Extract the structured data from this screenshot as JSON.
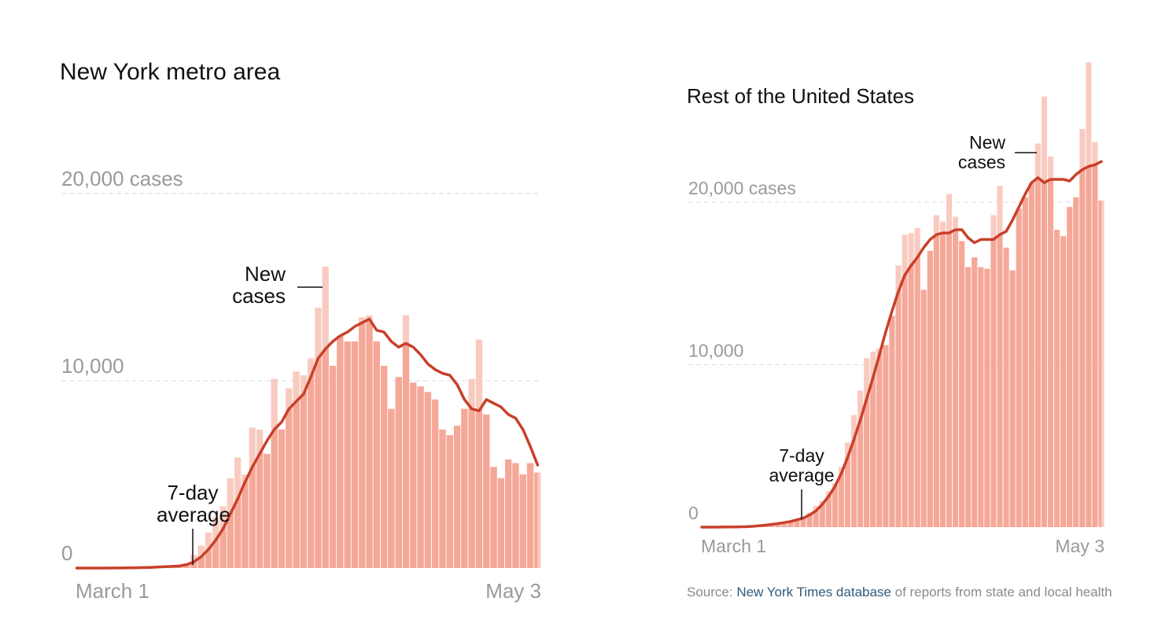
{
  "chart_data": [
    {
      "type": "bar",
      "title": "New York metro area",
      "categories": [
        "March 1",
        null,
        null,
        null,
        null,
        null,
        null,
        null,
        null,
        null,
        null,
        null,
        null,
        null,
        null,
        null,
        null,
        null,
        null,
        null,
        null,
        null,
        null,
        null,
        null,
        null,
        null,
        null,
        null,
        null,
        null,
        null,
        null,
        null,
        null,
        null,
        null,
        null,
        null,
        null,
        null,
        null,
        null,
        null,
        null,
        null,
        null,
        null,
        null,
        null,
        null,
        null,
        null,
        null,
        null,
        null,
        null,
        null,
        null,
        null,
        null,
        null,
        null,
        "May 3"
      ],
      "series": [
        {
          "name": "New cases",
          "color": "#f9cbc0",
          "values": [
            0,
            0,
            0,
            0,
            5,
            10,
            10,
            20,
            30,
            40,
            60,
            90,
            120,
            130,
            150,
            250,
            700,
            1200,
            1900,
            2700,
            3300,
            4800,
            5900,
            5000,
            7500,
            7400,
            6100,
            10100,
            7400,
            9600,
            10500,
            10300,
            11200,
            13900,
            16100,
            10800,
            12400,
            12100,
            12100,
            13400,
            13500,
            12100,
            10800,
            8500,
            10200,
            13500,
            9900,
            9700,
            9400,
            9000,
            7400,
            7100,
            7600,
            8500,
            10100,
            12200,
            8200,
            5400,
            4800,
            5800,
            5600,
            5000,
            5600,
            5100
          ]
        },
        {
          "name": "7-day average",
          "color": "#c9402a",
          "values": [
            0,
            0,
            0,
            1,
            2,
            4,
            6,
            10,
            16,
            24,
            35,
            50,
            70,
            90,
            110,
            180,
            330,
            600,
            1000,
            1500,
            2100,
            2900,
            3700,
            4600,
            5400,
            6100,
            6800,
            7400,
            7800,
            8500,
            8900,
            9300,
            10200,
            11200,
            11700,
            12100,
            12400,
            12600,
            12900,
            13100,
            13300,
            12700,
            12600,
            12100,
            11800,
            12000,
            11800,
            11400,
            10900,
            10600,
            10400,
            10300,
            9800,
            9000,
            8500,
            8400,
            9000,
            8800,
            8600,
            8200,
            8000,
            7400,
            6500,
            5500
          ]
        }
      ],
      "ylim": [
        0,
        20000
      ],
      "yticks": [
        0,
        {
          "value": 10000,
          "label": "10,000"
        },
        {
          "value": 20000,
          "label": "20,000 cases"
        }
      ],
      "grid": true
    },
    {
      "type": "bar",
      "title": "Rest of the United States",
      "categories": [
        "March 1",
        null,
        null,
        null,
        null,
        null,
        null,
        null,
        null,
        null,
        null,
        null,
        null,
        null,
        null,
        null,
        null,
        null,
        null,
        null,
        null,
        null,
        null,
        null,
        null,
        null,
        null,
        null,
        null,
        null,
        null,
        null,
        null,
        null,
        null,
        null,
        null,
        null,
        null,
        null,
        null,
        null,
        null,
        null,
        null,
        null,
        null,
        null,
        null,
        null,
        null,
        null,
        null,
        null,
        null,
        null,
        null,
        null,
        null,
        null,
        null,
        null,
        null,
        "May 3"
      ],
      "series": [
        {
          "name": "New cases",
          "color": "#f9cbc0",
          "values": [
            0,
            0,
            0,
            10,
            10,
            20,
            20,
            40,
            60,
            80,
            100,
            150,
            200,
            250,
            300,
            400,
            600,
            900,
            1300,
            1600,
            2200,
            2700,
            3700,
            5200,
            6900,
            8400,
            10400,
            10800,
            11000,
            11200,
            13000,
            16100,
            18000,
            18100,
            18400,
            14600,
            17000,
            19200,
            18800,
            20500,
            19100,
            17600,
            16000,
            16600,
            16000,
            15900,
            19200,
            21000,
            17200,
            15800,
            19600,
            20300,
            21200,
            23600,
            26500,
            22800,
            18300,
            17900,
            19700,
            20300,
            24500,
            28600,
            23700,
            20100
          ]
        },
        {
          "name": "7-day average",
          "color": "#c9402a",
          "values": [
            0,
            0,
            0,
            5,
            10,
            15,
            20,
            30,
            50,
            80,
            120,
            170,
            220,
            280,
            350,
            450,
            550,
            750,
            1000,
            1400,
            1900,
            2500,
            3300,
            4300,
            5400,
            6600,
            7900,
            9200,
            10600,
            12000,
            13300,
            14500,
            15500,
            16100,
            16600,
            17200,
            17700,
            18000,
            18100,
            18100,
            18300,
            18300,
            17800,
            17500,
            17700,
            17700,
            17700,
            18000,
            18200,
            18900,
            19700,
            20500,
            21200,
            21500,
            21200,
            21400,
            21400,
            21400,
            21300,
            21700,
            22000,
            22200,
            22300,
            22500
          ]
        }
      ],
      "ylim": [
        0,
        29000
      ],
      "yticks": [
        0,
        {
          "value": 10000,
          "label": "10,000"
        },
        {
          "value": 20000,
          "label": "20,000 cases"
        }
      ],
      "grid": true
    }
  ],
  "source": {
    "prefix": "Source:",
    "link": "New York Times database",
    "rest": "of reports from state and local health"
  }
}
